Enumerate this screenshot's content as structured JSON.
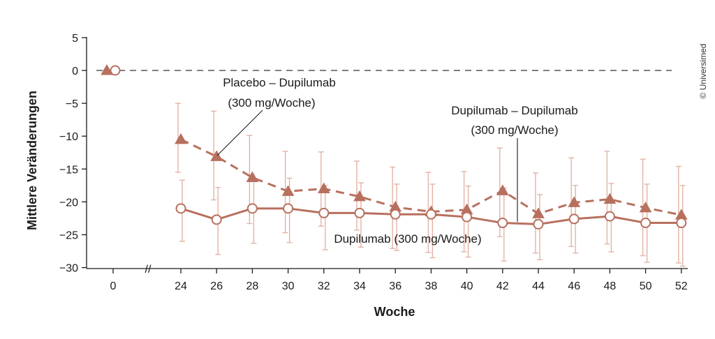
{
  "chart_data": {
    "type": "line",
    "xlabel": "Woche",
    "ylabel": "Mittlere Veränderungen",
    "ylim": [
      -30,
      5
    ],
    "yticks": [
      "5",
      "0",
      "−5",
      "−10",
      "−15",
      "−20",
      "−25",
      "−30"
    ],
    "xticks": [
      "0",
      "24",
      "26",
      "28",
      "30",
      "32",
      "34",
      "36",
      "38",
      "40",
      "42",
      "44",
      "46",
      "48",
      "50",
      "52"
    ],
    "axis_break": "//",
    "reference_line": {
      "y": 0,
      "style": "dashed"
    },
    "grid": false,
    "series": [
      {
        "marker": "triangle",
        "line_style": "dashed",
        "x": [
          0,
          24,
          26,
          28,
          30,
          32,
          34,
          36,
          38,
          40,
          42,
          44,
          46,
          48,
          50,
          52
        ],
        "y": [
          0,
          -10.5,
          -13.1,
          -16.3,
          -18.4,
          -18.0,
          -19.2,
          -20.8,
          -21.5,
          -21.2,
          -18.3,
          -21.8,
          -20.1,
          -19.6,
          -20.9,
          -22.0
        ],
        "error_low": [
          null,
          -15.5,
          -19.7,
          -23.3,
          -24.7,
          -23.7,
          -24.3,
          -27.1,
          -27.7,
          -27.6,
          -25.3,
          -27.8,
          -26.8,
          -26.4,
          -28.2,
          -29.3
        ],
        "error_high": [
          null,
          -5.0,
          -6.2,
          -9.9,
          -12.3,
          -12.4,
          -13.8,
          -14.7,
          -15.5,
          -15.4,
          -11.8,
          -15.6,
          -13.3,
          -12.3,
          -13.5,
          -14.6
        ]
      },
      {
        "marker": "open-circle",
        "line_style": "solid",
        "x": [
          0,
          24,
          26,
          28,
          30,
          32,
          34,
          36,
          38,
          40,
          42,
          44,
          46,
          48,
          50,
          52
        ],
        "y": [
          0,
          -21.0,
          -22.7,
          -21.0,
          -21.0,
          -21.7,
          -21.7,
          -21.9,
          -21.9,
          -22.3,
          -23.2,
          -23.4,
          -22.6,
          -22.2,
          -23.2,
          -23.2
        ],
        "error_low": [
          null,
          -26.0,
          -28.0,
          -26.3,
          -26.2,
          -27.3,
          -26.9,
          -27.4,
          -28.5,
          -28.4,
          -29.0,
          -28.8,
          -27.8,
          -27.6,
          -29.2,
          -29.8
        ],
        "error_high": [
          null,
          -16.7,
          -17.8,
          -16.9,
          -16.4,
          -17.5,
          -17.1,
          -17.3,
          -17.3,
          -17.6,
          -17.9,
          -18.9,
          -17.5,
          -17.2,
          -17.3,
          -17.5
        ]
      }
    ],
    "annotations": [
      {
        "lines": [
          "Placebo – Dupilumab",
          "(300 mg/Woche)"
        ]
      },
      {
        "lines": [
          "Dupilumab – Dupilumab",
          "(300 mg/Woche)"
        ]
      },
      {
        "lines": [
          "Dupilumab (300 mg/Woche)"
        ]
      }
    ],
    "colors": {
      "series": "#b8705e",
      "error_bar": "#e2b4a6",
      "axis": "#1a1a1a",
      "reference_line": "#333333"
    }
  },
  "copyright": "© Universimed"
}
